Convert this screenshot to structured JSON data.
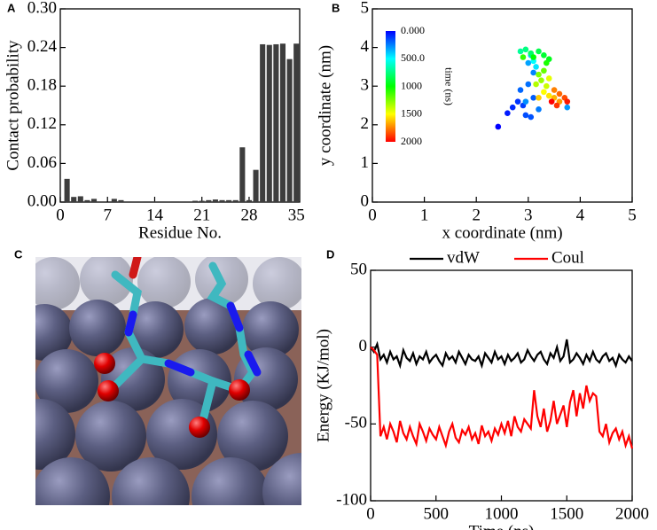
{
  "panels": [
    "A",
    "B",
    "C",
    "D"
  ],
  "chart_data": [
    {
      "type": "bar",
      "xlabel": "Residue No.",
      "ylabel": "Contact probability",
      "color": "#3d3d3d",
      "x": [
        1,
        2,
        3,
        4,
        5,
        6,
        7,
        8,
        9,
        10,
        11,
        12,
        13,
        14,
        15,
        16,
        17,
        18,
        19,
        20,
        21,
        22,
        23,
        24,
        25,
        26,
        27,
        28,
        29,
        30,
        31,
        32,
        33,
        34,
        35
      ],
      "values": [
        0.036,
        0.008,
        0.009,
        0.003,
        0.005,
        0,
        0,
        0.005,
        0.003,
        0.001,
        0.001,
        0.001,
        0,
        0.001,
        0,
        0.001,
        0,
        0.001,
        0.001,
        0.002,
        0.002,
        0.003,
        0.004,
        0.003,
        0.003,
        0.003,
        0.085,
        0.003,
        0.05,
        0.245,
        0.244,
        0.245,
        0.246,
        0.222,
        0.246
      ],
      "xlim": [
        0,
        35.5
      ],
      "xticks": [
        0,
        7,
        14,
        21,
        28,
        35
      ],
      "ylim": [
        0,
        0.3
      ],
      "yticks": [
        {
          "value": 0,
          "label": "0.00"
        },
        {
          "value": 0.06,
          "label": "0.06"
        },
        {
          "value": 0.12,
          "label": "0.12"
        },
        {
          "value": 0.18,
          "label": "0.18"
        },
        {
          "value": 0.24,
          "label": "0.24"
        },
        {
          "value": 0.3,
          "label": "0.30"
        }
      ]
    },
    {
      "type": "scatter",
      "xlabel": "x coordinate (nm)",
      "ylabel": "y coordinate (nm)",
      "x": [
        2.42,
        2.6,
        2.7,
        2.8,
        2.9,
        2.95,
        3.05,
        3.1,
        2.85,
        3.0,
        3.2,
        3.1,
        2.95,
        3.75,
        3.0,
        3.05,
        3.15,
        3.1,
        2.85,
        2.95,
        3.05,
        3.2,
        3.3,
        3.4,
        3.1,
        3.35,
        2.9,
        3.3,
        3.2,
        3.25,
        3.15,
        3.35,
        3.4,
        3.3,
        3.4,
        3.2,
        3.5,
        3.6,
        3.5,
        3.6,
        3.7,
        3.55,
        3.75,
        3.45
      ],
      "y": [
        1.95,
        2.3,
        2.45,
        2.6,
        2.5,
        2.25,
        2.2,
        2.7,
        2.9,
        3.05,
        2.4,
        3.35,
        2.6,
        2.45,
        3.6,
        3.8,
        3.5,
        3.65,
        3.9,
        3.95,
        3.85,
        3.9,
        3.8,
        3.7,
        3.75,
        3.6,
        3.75,
        3.4,
        3.3,
        3.15,
        3.05,
        3.0,
        3.2,
        2.85,
        2.75,
        2.7,
        2.7,
        2.6,
        2.9,
        2.8,
        2.7,
        2.5,
        2.6,
        2.6
      ],
      "time": [
        0,
        50,
        80,
        100,
        120,
        150,
        160,
        180,
        200,
        220,
        240,
        260,
        280,
        300,
        320,
        400,
        450,
        500,
        700,
        750,
        800,
        850,
        900,
        950,
        1000,
        1050,
        1100,
        1200,
        1250,
        1300,
        1350,
        1400,
        1450,
        1500,
        1550,
        1600,
        1650,
        1700,
        1750,
        1800,
        1850,
        1900,
        1950,
        2000
      ],
      "xlim": [
        0,
        5
      ],
      "xticks": [
        0,
        1,
        2,
        3,
        4,
        5
      ],
      "ylim": [
        0,
        5
      ],
      "yticks": [
        0,
        1,
        2,
        3,
        4,
        5
      ],
      "colorbar_label": "time (ns)",
      "clim": [
        0,
        2000
      ],
      "cticks": [
        {
          "value": 0,
          "label": "0.000"
        },
        {
          "value": 500,
          "label": "500.0"
        },
        1000,
        1500,
        2000
      ]
    },
    {
      "type": "line",
      "xlabel": "Time (ns)",
      "ylabel": "Energy (KJ/mol)",
      "x": [
        0,
        25,
        50,
        75,
        100,
        125,
        150,
        175,
        200,
        225,
        250,
        275,
        300,
        325,
        350,
        375,
        400,
        425,
        450,
        475,
        500,
        525,
        550,
        575,
        600,
        625,
        650,
        675,
        700,
        725,
        750,
        775,
        800,
        825,
        850,
        875,
        900,
        925,
        950,
        975,
        1000,
        1025,
        1050,
        1075,
        1100,
        1125,
        1150,
        1175,
        1200,
        1225,
        1250,
        1275,
        1300,
        1325,
        1350,
        1375,
        1400,
        1425,
        1450,
        1475,
        1500,
        1525,
        1550,
        1575,
        1600,
        1625,
        1650,
        1675,
        1700,
        1725,
        1750,
        1775,
        1800,
        1825,
        1850,
        1875,
        1900,
        1925,
        1950,
        1975,
        2000
      ],
      "series": [
        {
          "name": "vdW",
          "color": "#000000",
          "values": [
            0,
            -3,
            2,
            -8,
            -5,
            -10,
            -3,
            -8,
            -6,
            -12,
            -2,
            -7,
            -9,
            -4,
            -11,
            -6,
            -8,
            -3,
            -10,
            -7,
            -5,
            -9,
            -12,
            -4,
            -8,
            -6,
            -10,
            -3,
            -7,
            -11,
            -5,
            -8,
            -9,
            -6,
            -12,
            -4,
            -7,
            -10,
            -3,
            -8,
            -6,
            -11,
            -5,
            -9,
            -7,
            -4,
            -10,
            -8,
            -2,
            -6,
            -9,
            -5,
            -3,
            -8,
            -11,
            -4,
            -7,
            0,
            -9,
            -6,
            5,
            -10,
            -8,
            -4,
            -7,
            -11,
            -5,
            -9,
            -3,
            -8,
            -10,
            -6,
            -4,
            -9,
            -7,
            -12,
            -5,
            -8,
            -10,
            -6,
            -9
          ]
        },
        {
          "name": "Coul",
          "color": "#ff0000",
          "values": [
            0,
            -2,
            -5,
            -58,
            -52,
            -60,
            -50,
            -55,
            -62,
            -48,
            -56,
            -60,
            -52,
            -58,
            -63,
            -50,
            -55,
            -61,
            -53,
            -57,
            -60,
            -52,
            -58,
            -64,
            -55,
            -50,
            -59,
            -62,
            -54,
            -57,
            -52,
            -60,
            -56,
            -63,
            -51,
            -58,
            -55,
            -61,
            -53,
            -57,
            -50,
            -56,
            -48,
            -58,
            -45,
            -52,
            -55,
            -47,
            -50,
            -53,
            -28,
            -45,
            -52,
            -40,
            -55,
            -48,
            -35,
            -50,
            -44,
            -38,
            -52,
            -36,
            -28,
            -45,
            -30,
            -40,
            -25,
            -35,
            -30,
            -32,
            -55,
            -58,
            -50,
            -62,
            -56,
            -53,
            -60,
            -55,
            -64,
            -58,
            -66
          ]
        }
      ],
      "xlim": [
        0,
        2000
      ],
      "xticks": [
        0,
        500,
        1000,
        1500,
        2000
      ],
      "ylim": [
        -100,
        50
      ],
      "yticks": [
        -100,
        -50,
        0,
        50
      ]
    }
  ]
}
